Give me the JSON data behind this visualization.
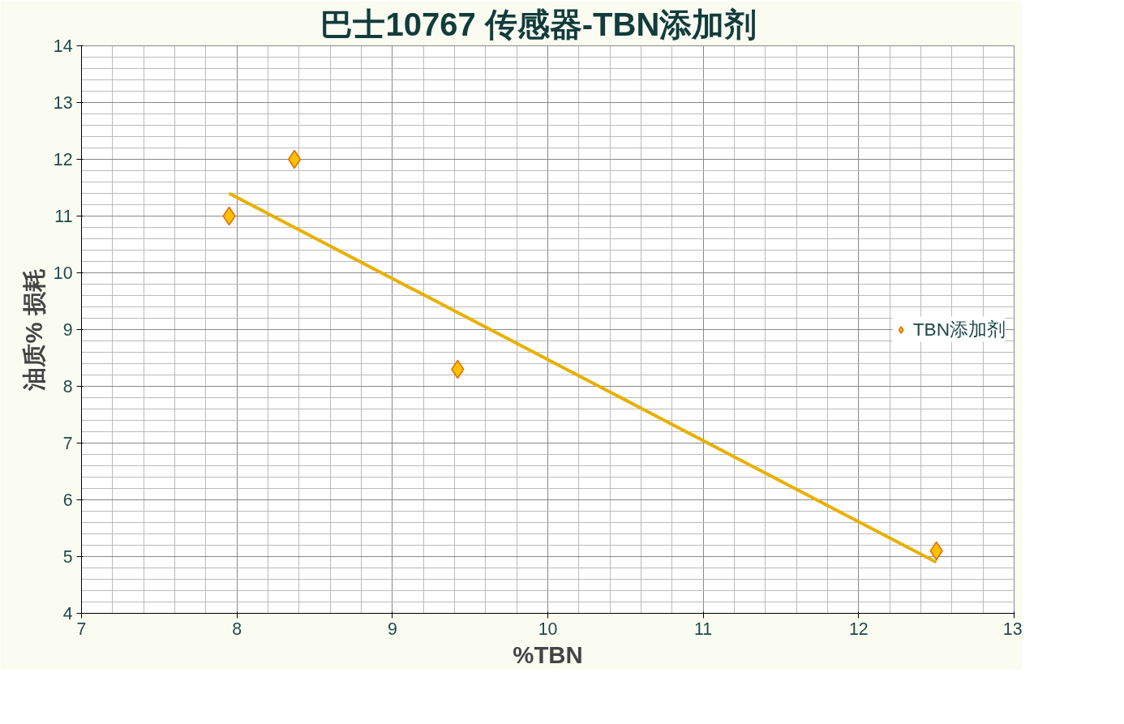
{
  "chart_data": {
    "type": "scatter",
    "title": "巴士10767   传感器-TBN添加剂",
    "xlabel": "%TBN",
    "ylabel": "油质% 损耗",
    "xlim": [
      7,
      13
    ],
    "xticks": [
      7,
      8,
      9,
      10,
      11,
      12,
      13
    ],
    "ylim": [
      4,
      14
    ],
    "yticks": [
      4,
      5,
      6,
      7,
      8,
      9,
      10,
      11,
      12,
      13,
      14
    ],
    "grid": true,
    "legend": "right",
    "series": [
      {
        "name": "TBN添加剂",
        "marker": "diamond",
        "color": "#ffc000",
        "x": [
          7.95,
          8.37,
          9.42,
          12.5
        ],
        "values": [
          11.0,
          12.0,
          8.3,
          5.1
        ]
      },
      {
        "type": "line",
        "color": "#e8b000",
        "x": [
          7.95,
          12.5
        ],
        "values": [
          11.4,
          4.9
        ]
      }
    ]
  }
}
